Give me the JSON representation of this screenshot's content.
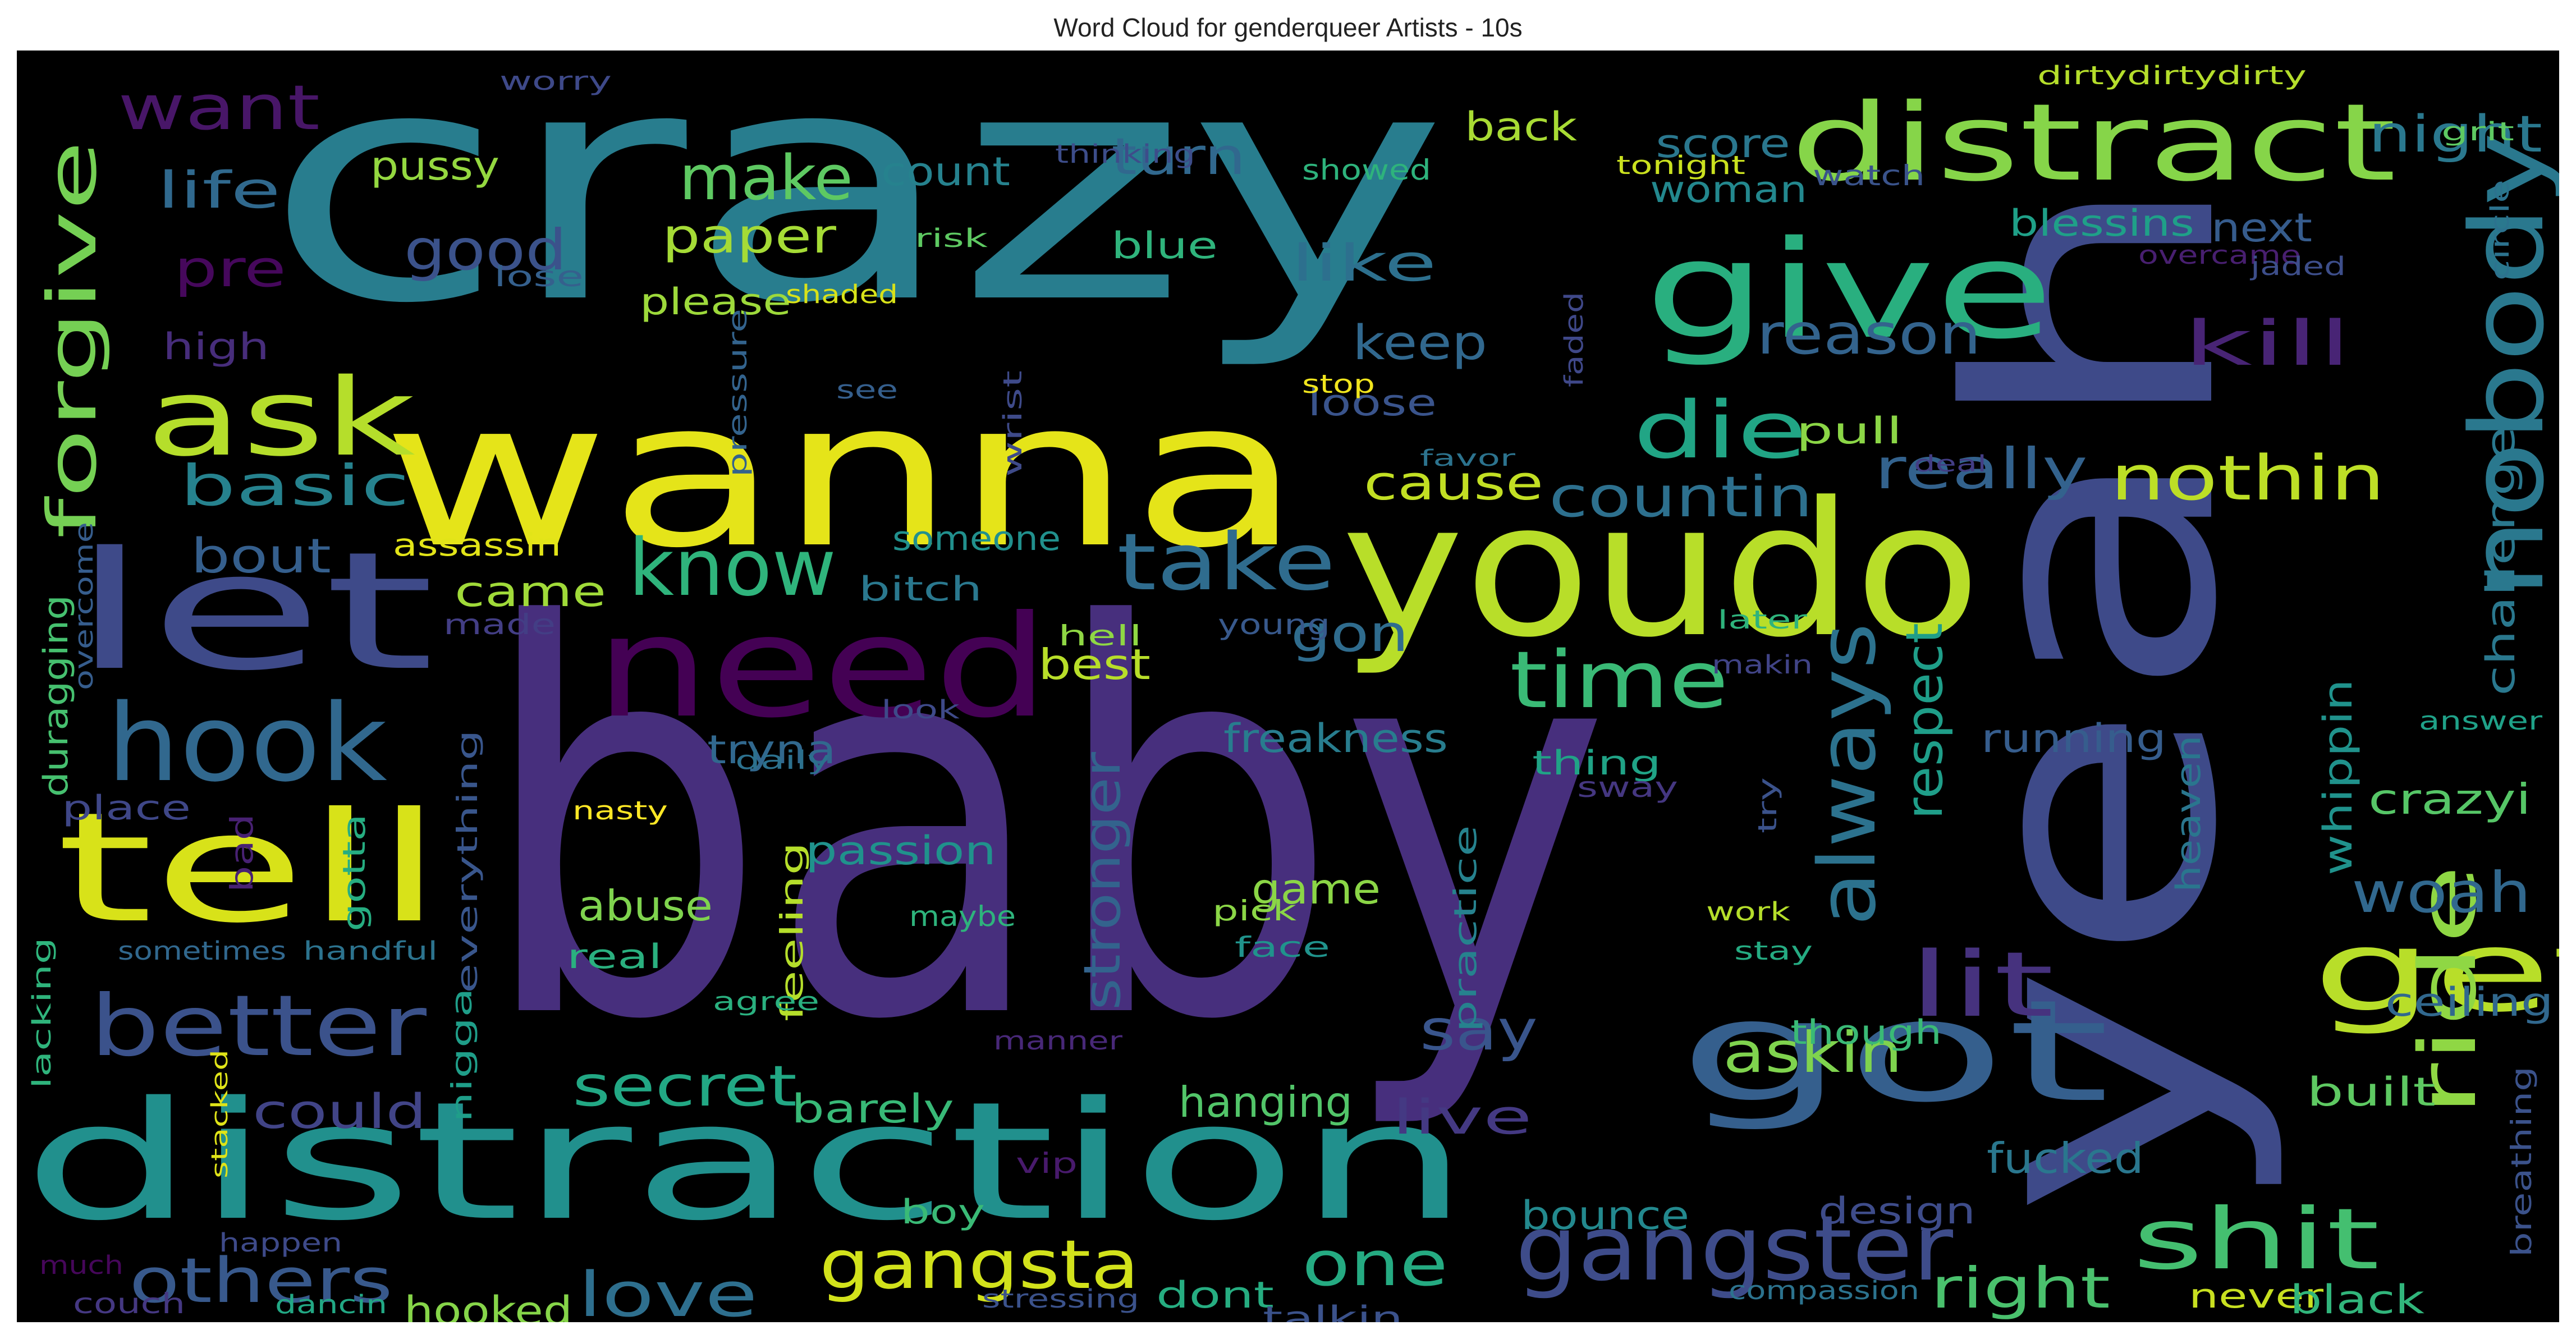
{
  "chart_data": {
    "type": "wordcloud",
    "title": "Word Cloud for genderqueer Artists - 10s",
    "background": "#000000",
    "colormap": "viridis",
    "words": [
      {
        "text": "baby",
        "color": "#472f7d"
      },
      {
        "text": "crazy",
        "color": "#287d8e"
      },
      {
        "text": "yeah",
        "color": "#3e4a89"
      },
      {
        "text": "wanna",
        "color": "#e5e419"
      },
      {
        "text": "youdo",
        "color": "#b8de29"
      },
      {
        "text": "distraction",
        "color": "#21908d"
      },
      {
        "text": "need",
        "color": "#440154"
      },
      {
        "text": "let",
        "color": "#3e4a89"
      },
      {
        "text": "tell",
        "color": "#d8e219"
      },
      {
        "text": "got",
        "color": "#355f8d"
      },
      {
        "text": "give",
        "color": "#29af7f"
      },
      {
        "text": "distract",
        "color": "#86d549"
      },
      {
        "text": "nobody",
        "color": "#2a788e"
      },
      {
        "text": "get",
        "color": "#b8de29"
      },
      {
        "text": "hook",
        "color": "#31688e"
      },
      {
        "text": "ask",
        "color": "#b5de2b"
      },
      {
        "text": "forgive",
        "color": "#75d054"
      },
      {
        "text": "better",
        "color": "#3b528b"
      },
      {
        "text": "gangster",
        "color": "#3e4c8a"
      },
      {
        "text": "always",
        "color": "#2c728e"
      },
      {
        "text": "ride",
        "color": "#8fd744"
      },
      {
        "text": "shit",
        "color": "#44bf70"
      },
      {
        "text": "know",
        "color": "#2fb47c"
      },
      {
        "text": "take",
        "color": "#2f6c8e"
      },
      {
        "text": "die",
        "color": "#21a585"
      },
      {
        "text": "time",
        "color": "#3aba76"
      },
      {
        "text": "lit",
        "color": "#46327e"
      },
      {
        "text": "nothin",
        "color": "#bddf26"
      },
      {
        "text": "gangsta",
        "color": "#d2e21b"
      },
      {
        "text": "others",
        "color": "#38598c"
      },
      {
        "text": "love",
        "color": "#2e6f8e"
      },
      {
        "text": "one",
        "color": "#25ab82"
      },
      {
        "text": "right",
        "color": "#4ac16d"
      },
      {
        "text": "want",
        "color": "#481668"
      },
      {
        "text": "kill",
        "color": "#482475"
      },
      {
        "text": "woah",
        "color": "#31688e"
      },
      {
        "text": "make",
        "color": "#5ec962"
      },
      {
        "text": "night",
        "color": "#2a788e"
      },
      {
        "text": "good",
        "color": "#3b528b"
      },
      {
        "text": "basic",
        "color": "#26828e"
      },
      {
        "text": "reason",
        "color": "#33638d"
      },
      {
        "text": "countin",
        "color": "#2d708e"
      },
      {
        "text": "really",
        "color": "#33628d"
      },
      {
        "text": "secret",
        "color": "#22a884"
      },
      {
        "text": "say",
        "color": "#39558c"
      },
      {
        "text": "askin",
        "color": "#7fd34e"
      },
      {
        "text": "stronger",
        "color": "#33638d"
      },
      {
        "text": "respect",
        "color": "#1f9e89"
      },
      {
        "text": "cause",
        "color": "#c2df23"
      },
      {
        "text": "paper",
        "color": "#a5db36"
      },
      {
        "text": "life",
        "color": "#30698e"
      },
      {
        "text": "turn",
        "color": "#31688e"
      },
      {
        "text": "like",
        "color": "#2d708e"
      },
      {
        "text": "keep",
        "color": "#31688e"
      },
      {
        "text": "crazyi",
        "color": "#56c667"
      },
      {
        "text": "challenge",
        "color": "#2a788e"
      },
      {
        "text": "whippin",
        "color": "#20928c"
      },
      {
        "text": "could",
        "color": "#414487"
      },
      {
        "text": "live",
        "color": "#443983"
      },
      {
        "text": "hanging",
        "color": "#52c569"
      },
      {
        "text": "fucked",
        "color": "#2a778e"
      },
      {
        "text": "pre",
        "color": "#46085c"
      },
      {
        "text": "game",
        "color": "#8bd646"
      },
      {
        "text": "bout",
        "color": "#355f8d"
      },
      {
        "text": "came",
        "color": "#a0da39"
      },
      {
        "text": "gon",
        "color": "#2f6c8e"
      },
      {
        "text": "best",
        "color": "#b8de29"
      },
      {
        "text": "freakness",
        "color": "#287d8e"
      },
      {
        "text": "tryna",
        "color": "#31688e"
      },
      {
        "text": "passion",
        "color": "#20928c"
      },
      {
        "text": "abuse",
        "color": "#7fd34e"
      },
      {
        "text": "barely",
        "color": "#38b977"
      },
      {
        "text": "running",
        "color": "#365d8d"
      },
      {
        "text": "ceiling",
        "color": "#31688e"
      },
      {
        "text": "built",
        "color": "#5ec962"
      },
      {
        "text": "heaven",
        "color": "#2a768e"
      },
      {
        "text": "bounce",
        "color": "#23898e"
      },
      {
        "text": "design",
        "color": "#3e4c8a"
      },
      {
        "text": "hooked",
        "color": "#86d549"
      },
      {
        "text": "dont",
        "color": "#26ad81"
      },
      {
        "text": "talkin",
        "color": "#3b528b"
      },
      {
        "text": "never",
        "color": "#c8e020"
      },
      {
        "text": "black",
        "color": "#31b57b"
      },
      {
        "text": "breathing",
        "color": "#3b528b"
      },
      {
        "text": "score",
        "color": "#2a778e"
      },
      {
        "text": "woman",
        "color": "#23888e"
      },
      {
        "text": "back",
        "color": "#a8db34"
      },
      {
        "text": "blessins",
        "color": "#1fa088"
      },
      {
        "text": "next",
        "color": "#365c8d"
      },
      {
        "text": "pussy",
        "color": "#94d840"
      },
      {
        "text": "count",
        "color": "#26828e"
      },
      {
        "text": "please",
        "color": "#9dd93b"
      },
      {
        "text": "blue",
        "color": "#2fb47c"
      },
      {
        "text": "loose",
        "color": "#3a548c"
      },
      {
        "text": "pull",
        "color": "#8bd646"
      },
      {
        "text": "high",
        "color": "#472d7b"
      },
      {
        "text": "assassin",
        "color": "#e2e418"
      },
      {
        "text": "someone",
        "color": "#21908d"
      },
      {
        "text": "bitch",
        "color": "#2a788e"
      },
      {
        "text": "duragging",
        "color": "#46c06f"
      },
      {
        "text": "place",
        "color": "#3f4788"
      },
      {
        "text": "everything",
        "color": "#39568c"
      },
      {
        "text": "thing",
        "color": "#20a386"
      },
      {
        "text": "feeling",
        "color": "#b5de2b"
      },
      {
        "text": "real",
        "color": "#2ab07f"
      },
      {
        "text": "practice",
        "color": "#26828e"
      },
      {
        "text": "though",
        "color": "#3aba76"
      },
      {
        "text": "made",
        "color": "#433e85"
      },
      {
        "text": "gotta",
        "color": "#26ad81"
      },
      {
        "text": "nigga",
        "color": "#1f9e89"
      },
      {
        "text": "bad",
        "color": "#482173"
      },
      {
        "text": "boy",
        "color": "#3aba76"
      },
      {
        "text": "dirtydirtydirty",
        "color": "#b5de2b"
      },
      {
        "text": "worry",
        "color": "#3e4989"
      },
      {
        "text": "thinking",
        "color": "#3d4d8a"
      },
      {
        "text": "showed",
        "color": "#2eb37c"
      },
      {
        "text": "tonight",
        "color": "#cae11f"
      },
      {
        "text": "watch",
        "color": "#3a538b"
      },
      {
        "text": "grit",
        "color": "#5ec962"
      },
      {
        "text": "risk",
        "color": "#5ec962"
      },
      {
        "text": "lose",
        "color": "#35608d"
      },
      {
        "text": "shaded",
        "color": "#d8e219"
      },
      {
        "text": "pressure",
        "color": "#33638d"
      },
      {
        "text": "see",
        "color": "#355f8d"
      },
      {
        "text": "wrist",
        "color": "#3e4a89"
      },
      {
        "text": "stop",
        "color": "#f1e51d"
      },
      {
        "text": "favor",
        "color": "#2c738e"
      },
      {
        "text": "faded",
        "color": "#3f4889"
      },
      {
        "text": "overcame",
        "color": "#481f70"
      },
      {
        "text": "jaded",
        "color": "#3d4e8a"
      },
      {
        "text": "circle",
        "color": "#2c728e"
      },
      {
        "text": "deal",
        "color": "#433d84"
      },
      {
        "text": "overcome",
        "color": "#365d8d"
      },
      {
        "text": "hell",
        "color": "#8fd744"
      },
      {
        "text": "young",
        "color": "#38598c"
      },
      {
        "text": "later",
        "color": "#2eb37c"
      },
      {
        "text": "makin",
        "color": "#414487"
      },
      {
        "text": "look",
        "color": "#3e4a89"
      },
      {
        "text": "daily",
        "color": "#2c718e"
      },
      {
        "text": "nasty",
        "color": "#fde725"
      },
      {
        "text": "sway",
        "color": "#453781"
      },
      {
        "text": "try",
        "color": "#3b528b"
      },
      {
        "text": "answer",
        "color": "#1fa188"
      },
      {
        "text": "maybe",
        "color": "#2eb37c"
      },
      {
        "text": "pick",
        "color": "#8bd646"
      },
      {
        "text": "face",
        "color": "#20938c"
      },
      {
        "text": "work",
        "color": "#b5de2b"
      },
      {
        "text": "stay",
        "color": "#25ab82"
      },
      {
        "text": "sometimes",
        "color": "#31688e"
      },
      {
        "text": "handful",
        "color": "#2c738e"
      },
      {
        "text": "lacking",
        "color": "#2fb47c"
      },
      {
        "text": "agree",
        "color": "#2ab07f"
      },
      {
        "text": "manner",
        "color": "#482878"
      },
      {
        "text": "stacked",
        "color": "#dfe318"
      },
      {
        "text": "vip",
        "color": "#481a6c"
      },
      {
        "text": "happen",
        "color": "#3e4a89"
      },
      {
        "text": "much",
        "color": "#46075a"
      },
      {
        "text": "couch",
        "color": "#453882"
      },
      {
        "text": "dancin",
        "color": "#22a884"
      },
      {
        "text": "stressing",
        "color": "#3b528b"
      },
      {
        "text": "compassion",
        "color": "#2c738e"
      }
    ]
  }
}
